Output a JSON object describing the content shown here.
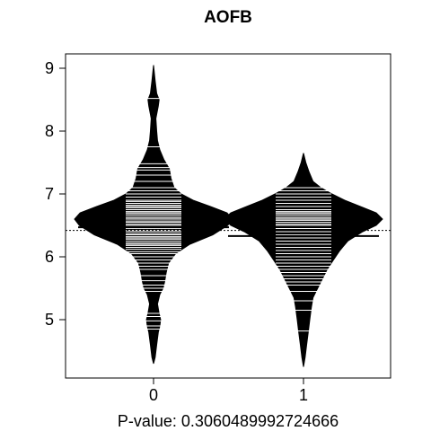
{
  "chart_data": {
    "type": "beanplot",
    "title": "AOFB",
    "xlabel": "",
    "ylabel": "",
    "categories": [
      "0",
      "1"
    ],
    "y_ticks": [
      "5",
      "6",
      "7",
      "8",
      "9"
    ],
    "ylim": [
      4.1,
      9.2
    ],
    "overall_mean": 6.42,
    "caption": "P-value: 0.3060489992724666",
    "series": [
      {
        "category": "0",
        "mean": 6.47,
        "density": [
          [
            4.3,
            0.0
          ],
          [
            4.4,
            0.02
          ],
          [
            4.6,
            0.04
          ],
          [
            4.8,
            0.06
          ],
          [
            4.9,
            0.08
          ],
          [
            5.0,
            0.09
          ],
          [
            5.1,
            0.07
          ],
          [
            5.25,
            0.05
          ],
          [
            5.4,
            0.08
          ],
          [
            5.5,
            0.12
          ],
          [
            5.6,
            0.14
          ],
          [
            5.75,
            0.16
          ],
          [
            5.9,
            0.19
          ],
          [
            6.05,
            0.28
          ],
          [
            6.2,
            0.46
          ],
          [
            6.35,
            0.75
          ],
          [
            6.5,
            0.94
          ],
          [
            6.6,
            1.0
          ],
          [
            6.7,
            0.93
          ],
          [
            6.8,
            0.72
          ],
          [
            6.9,
            0.5
          ],
          [
            7.0,
            0.35
          ],
          [
            7.1,
            0.26
          ],
          [
            7.25,
            0.22
          ],
          [
            7.4,
            0.2
          ],
          [
            7.55,
            0.13
          ],
          [
            7.7,
            0.08
          ],
          [
            7.85,
            0.05
          ],
          [
            8.0,
            0.04
          ],
          [
            8.2,
            0.03
          ],
          [
            8.4,
            0.06
          ],
          [
            8.5,
            0.07
          ],
          [
            8.6,
            0.04
          ],
          [
            8.8,
            0.02
          ],
          [
            9.05,
            0.0
          ]
        ],
        "observations": [
          4.85,
          4.9,
          4.98,
          5.05,
          5.1,
          5.45,
          5.5,
          5.55,
          5.62,
          5.7,
          5.8,
          5.85,
          5.9,
          5.95,
          6.0,
          6.05,
          6.08,
          6.12,
          6.15,
          6.18,
          6.2,
          6.22,
          6.25,
          6.28,
          6.3,
          6.32,
          6.35,
          6.37,
          6.4,
          6.42,
          6.45,
          6.47,
          6.5,
          6.52,
          6.55,
          6.57,
          6.6,
          6.62,
          6.65,
          6.68,
          6.7,
          6.72,
          6.75,
          6.78,
          6.8,
          6.82,
          6.85,
          6.88,
          6.9,
          6.95,
          7.0,
          7.05,
          7.1,
          7.2,
          7.3,
          7.38,
          7.42,
          7.48,
          7.75,
          8.52
        ]
      },
      {
        "category": "1",
        "mean": 6.33,
        "density": [
          [
            4.25,
            0.0
          ],
          [
            4.4,
            0.02
          ],
          [
            4.6,
            0.04
          ],
          [
            4.8,
            0.06
          ],
          [
            5.0,
            0.08
          ],
          [
            5.2,
            0.1
          ],
          [
            5.35,
            0.12
          ],
          [
            5.5,
            0.18
          ],
          [
            5.65,
            0.24
          ],
          [
            5.8,
            0.3
          ],
          [
            5.95,
            0.38
          ],
          [
            6.1,
            0.46
          ],
          [
            6.25,
            0.56
          ],
          [
            6.4,
            0.75
          ],
          [
            6.5,
            0.92
          ],
          [
            6.6,
            1.0
          ],
          [
            6.7,
            0.92
          ],
          [
            6.8,
            0.72
          ],
          [
            6.9,
            0.52
          ],
          [
            7.0,
            0.36
          ],
          [
            7.1,
            0.22
          ],
          [
            7.2,
            0.12
          ],
          [
            7.35,
            0.07
          ],
          [
            7.5,
            0.03
          ],
          [
            7.65,
            0.0
          ]
        ],
        "observations": [
          4.82,
          5.15,
          5.3,
          5.45,
          5.55,
          5.6,
          5.65,
          5.7,
          5.75,
          5.8,
          5.85,
          5.9,
          5.95,
          6.0,
          6.05,
          6.1,
          6.15,
          6.2,
          6.25,
          6.3,
          6.35,
          6.4,
          6.45,
          6.5,
          6.52,
          6.55,
          6.58,
          6.6,
          6.62,
          6.65,
          6.68,
          6.7,
          6.72,
          6.75,
          6.8,
          6.85,
          6.9,
          6.95,
          7.0,
          7.05,
          7.1
        ]
      }
    ]
  },
  "colors": {
    "bean_fill": "#000000",
    "observation_line": "#ffffff",
    "axis": "#000000",
    "background": "#ffffff"
  }
}
